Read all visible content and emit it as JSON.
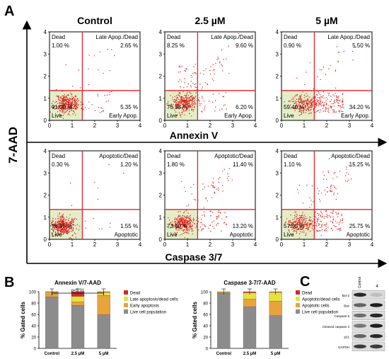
{
  "panel_labels": {
    "a": "A",
    "b": "B",
    "c": "C"
  },
  "panel_a": {
    "y_axis_title": "7-AAD",
    "column_titles": [
      "Control",
      "2.5 µM",
      "5 µM"
    ],
    "row_axis_titles": [
      "Annexin V",
      "Caspase 3/7"
    ],
    "tick_labels": [
      "0",
      "1",
      "2",
      "3",
      "4"
    ],
    "gate_x": 1.45,
    "gate_y": 1.35,
    "quadrant_labels": {
      "annexin": {
        "ul": "Dead",
        "ur": "Late Apop./Dead",
        "ll": "Live",
        "lr": "Early Apop."
      },
      "caspase": {
        "ul": "Dead",
        "ur": "Apoptotic/Dead",
        "ll": "Live",
        "lr": "Apoptotic"
      }
    },
    "plots": [
      {
        "row": 0,
        "col": 0,
        "ul": "1.00 %",
        "ur": "2.65 %",
        "ll": "91.00 %",
        "lr": "5.35 %",
        "center": [
          0.8,
          0.75
        ],
        "seed": 11
      },
      {
        "row": 0,
        "col": 1,
        "ul": "8.25 %",
        "ur": "9.60 %",
        "ll": "75.95 %",
        "lr": "6.20 %",
        "center": [
          0.85,
          0.8
        ],
        "seed": 23
      },
      {
        "row": 0,
        "col": 2,
        "ul": "0.90 %",
        "ur": "5.50 %",
        "ll": "59.40 %",
        "lr": "34.20 %",
        "center": [
          1.0,
          0.75
        ],
        "seed": 37
      },
      {
        "row": 1,
        "col": 0,
        "ul": "0.30 %",
        "ur": "1.20 %",
        "ll": "96.95 %",
        "lr": "1.55 %",
        "center": [
          0.6,
          0.6
        ],
        "seed": 41
      },
      {
        "row": 1,
        "col": 1,
        "ul": "1.80 %",
        "ur": "11.40 %",
        "ll": "73.60 %",
        "lr": "13.20 %",
        "center": [
          0.85,
          0.7
        ],
        "seed": 53
      },
      {
        "row": 1,
        "col": 2,
        "ul": "1.10 %",
        "ur": "15.25 %",
        "ll": "57.85 %",
        "lr": "25.75 %",
        "center": [
          0.8,
          0.65
        ],
        "seed": 67
      }
    ]
  },
  "chart_data": [
    {
      "type": "bar",
      "title": "Annexin V/7-AAD",
      "ylabel": "% Gated cells",
      "categories": [
        "Control",
        "2.5 µM",
        "5 µM"
      ],
      "ylim": [
        0,
        100
      ],
      "yticks": [
        0,
        20,
        40,
        60,
        80,
        100
      ],
      "significance": "p<0.01",
      "series": [
        {
          "name": "Live cell population",
          "color": "#8c8c8c",
          "values": [
            91.0,
            76.0,
            59.4
          ]
        },
        {
          "name": "Early apoptosis",
          "color": "#e8a33a",
          "values": [
            5.35,
            6.2,
            34.2
          ]
        },
        {
          "name": "Late apoptosis/dead cells",
          "color": "#e6e23c",
          "values": [
            2.65,
            9.6,
            5.5
          ]
        },
        {
          "name": "Dead",
          "color": "#cf2a2a",
          "values": [
            1.0,
            8.25,
            0.9
          ]
        }
      ]
    },
    {
      "type": "bar",
      "title": "Caspase 3-7/7-AAD",
      "ylabel": "% Gated cells",
      "categories": [
        "Control",
        "2.5 µM",
        "5 µM"
      ],
      "ylim": [
        0,
        100
      ],
      "yticks": [
        0,
        20,
        40,
        60,
        80,
        100
      ],
      "series": [
        {
          "name": "Live cell population",
          "color": "#8c8c8c",
          "values": [
            96.95,
            73.6,
            57.85
          ]
        },
        {
          "name": "Apoptotic cells",
          "color": "#e8a33a",
          "values": [
            1.55,
            13.2,
            25.75
          ]
        },
        {
          "name": "Apoptotic/dead cells",
          "color": "#e6e23c",
          "values": [
            1.2,
            11.4,
            15.25
          ]
        },
        {
          "name": "Dead",
          "color": "#cf2a2a",
          "values": [
            0.3,
            1.8,
            1.1
          ]
        }
      ]
    }
  ],
  "panel_c": {
    "lanes": [
      "Control",
      "4"
    ],
    "proteins": [
      "Bcl-2",
      "Bax",
      "Caspase 9",
      "Cleaved caspase 3",
      "p21",
      "GAPDH"
    ]
  }
}
